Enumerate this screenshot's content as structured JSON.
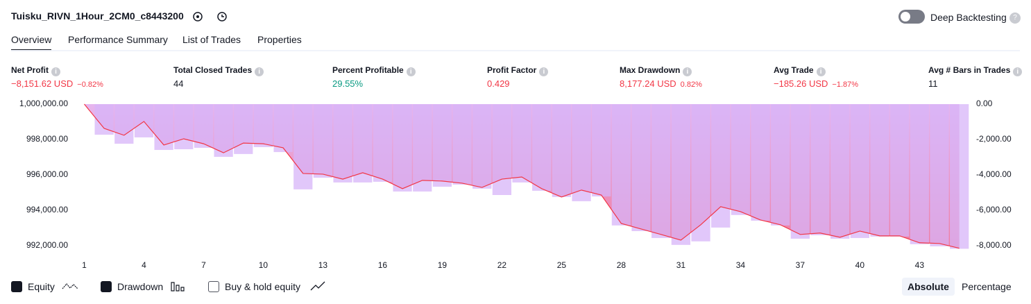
{
  "header": {
    "title": "Tuisku_RIVN_1Hour_2CM0_c8443200",
    "deep_backtesting": "Deep Backtesting"
  },
  "tabs": [
    "Overview",
    "Performance Summary",
    "List of Trades",
    "Properties"
  ],
  "metrics": [
    {
      "label": "Net Profit",
      "value": "−8,151.62 USD",
      "change": "−0.82%"
    },
    {
      "label": "Total Closed Trades",
      "value": "44"
    },
    {
      "label": "Percent Profitable",
      "value": "29.55%"
    },
    {
      "label": "Profit Factor",
      "value": "0.429"
    },
    {
      "label": "Max Drawdown",
      "value": "8,177.24 USD",
      "change": "0.82%"
    },
    {
      "label": "Avg Trade",
      "value": "−185.26 USD",
      "change": "−1.87%"
    },
    {
      "label": "Avg # Bars in Trades",
      "value": "11"
    }
  ],
  "chart_data": {
    "type": "line",
    "x": [
      1,
      2,
      3,
      4,
      5,
      6,
      7,
      8,
      9,
      10,
      11,
      12,
      13,
      14,
      15,
      16,
      17,
      18,
      19,
      20,
      21,
      22,
      23,
      24,
      25,
      26,
      27,
      28,
      29,
      30,
      31,
      32,
      33,
      34,
      35,
      36,
      37,
      38,
      39,
      40,
      41,
      42,
      43,
      44,
      45
    ],
    "series": [
      {
        "name": "Equity",
        "type": "line",
        "color": "#f23645",
        "axis": "y",
        "values": [
          1000000,
          998630,
          998240,
          999020,
          997690,
          998040,
          997760,
          997250,
          997800,
          997760,
          997530,
          996080,
          996040,
          995760,
          996120,
          995760,
          995220,
          995690,
          995650,
          995530,
          995290,
          995760,
          995880,
          995220,
          994750,
          995140,
          994860,
          993250,
          992940,
          992630,
          992310,
          993180,
          994200,
          993920,
          993450,
          993180,
          992630,
          992710,
          992470,
          992820,
          992550,
          992550,
          992160,
          992120,
          991850
        ]
      },
      {
        "name": "Drawdown",
        "type": "bar",
        "color": "#d7b4f8",
        "axis": "y2",
        "values": [
          null,
          -1730,
          -2240,
          -1880,
          -2590,
          -2550,
          -2470,
          -2980,
          -2820,
          -2430,
          -2710,
          -4820,
          -4160,
          -4430,
          -4430,
          -4390,
          -4940,
          -4940,
          -4670,
          -4550,
          -4780,
          -5140,
          -4430,
          -4900,
          -5250,
          -5490,
          -5220,
          -6860,
          -7180,
          -7570,
          -7960,
          -7760,
          -6980,
          -6270,
          -6590,
          -6860,
          -7610,
          -7410,
          -7610,
          -7570,
          -7490,
          -7490,
          -7920,
          -8040,
          -8180
        ]
      }
    ],
    "xlim": [
      0.6,
      45.5
    ],
    "xticks": [
      1,
      4,
      7,
      10,
      13,
      16,
      19,
      22,
      25,
      28,
      31,
      34,
      37,
      40,
      43
    ],
    "ylim": [
      991700,
      1000100
    ],
    "yticks": [
      {
        "value": 1000000,
        "label": "1,000,000.00"
      },
      {
        "value": 998000,
        "label": "998,000.00"
      },
      {
        "value": 996000,
        "label": "996,000.00"
      },
      {
        "value": 994000,
        "label": "994,000.00"
      },
      {
        "value": 992000,
        "label": "992,000.00"
      }
    ],
    "y2lim": [
      -8300,
      100
    ],
    "y2ticks": [
      {
        "value": 0,
        "label": "0.00"
      },
      {
        "value": -2000,
        "label": "-2,000.00"
      },
      {
        "value": -4000,
        "label": "-4,000.00"
      },
      {
        "value": -6000,
        "label": "-6,000.00"
      },
      {
        "value": -8000,
        "label": "-8,000.00"
      }
    ],
    "grid": false
  },
  "controls": {
    "buy_hold": "Buy & hold equity",
    "absolute": "Absolute",
    "percentage": "Percentage"
  }
}
